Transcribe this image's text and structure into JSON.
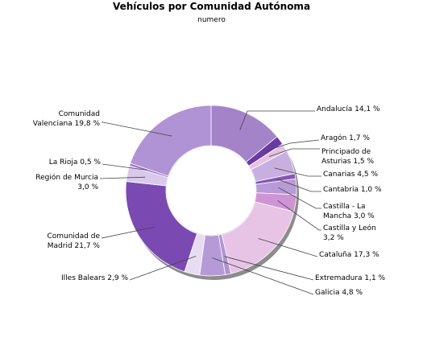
{
  "chart_data": {
    "type": "pie",
    "title": "Vehículos por Comunidad Autónoma",
    "subtitle": "numero",
    "slices": [
      {
        "label": [
          "Andalucía 14,1 %"
        ],
        "value": 14.1,
        "color": "#a583c9"
      },
      {
        "label": [
          "Aragón 1,7 %"
        ],
        "value": 1.7,
        "color": "#6a3aa4"
      },
      {
        "label": [
          "Principado de",
          "Asturias 1,5 %"
        ],
        "value": 1.5,
        "color": "#e5c2e5"
      },
      {
        "label": [
          "Canarias 4,5 %"
        ],
        "value": 4.5,
        "color": "#c9afe0"
      },
      {
        "label": [
          "Cantabria 1,0 %"
        ],
        "value": 1.0,
        "color": "#8456b8"
      },
      {
        "label": [
          "Castilla - La",
          "Mancha 3,0 %"
        ],
        "value": 3.0,
        "color": "#b89ad6"
      },
      {
        "label": [
          "Castilla y León",
          "3,2 %"
        ],
        "value": 3.2,
        "color": "#cf94d6"
      },
      {
        "label": [
          "Cataluña 17,3 %"
        ],
        "value": 17.3,
        "color": "#e7c4e6"
      },
      {
        "label": [
          "Extremadura 1,1 %"
        ],
        "value": 1.1,
        "color": "#b193d2"
      },
      {
        "label": [
          "Galicia 4,8 %"
        ],
        "value": 4.8,
        "color": "#b59ad7"
      },
      {
        "label": [
          "Illes Balears 2,9 %"
        ],
        "value": 2.9,
        "color": "#e8dcf2"
      },
      {
        "label": [
          "Comunidad de",
          "Madrid 21,7 %"
        ],
        "value": 21.7,
        "color": "#7b49b2"
      },
      {
        "label": [
          "Región de Murcia",
          "3,0 %"
        ],
        "value": 3.0,
        "color": "#dac9ec"
      },
      {
        "label": [
          "La Rioja 0,5 %"
        ],
        "value": 0.5,
        "color": "#9c6fc8"
      },
      {
        "label": [
          "Comunidad",
          "Valenciana 19,8 %"
        ],
        "value": 19.8,
        "color": "#b093d4"
      }
    ]
  }
}
